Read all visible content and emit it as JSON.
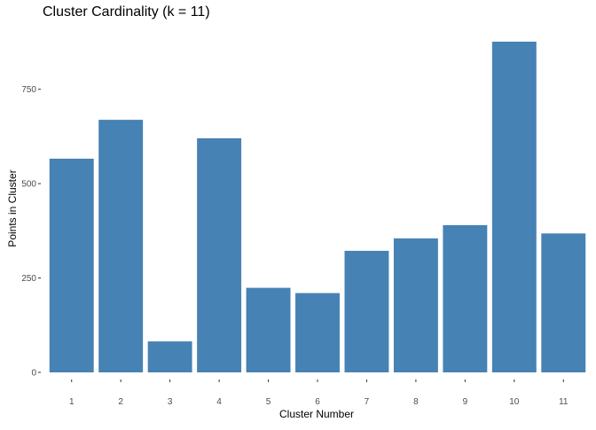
{
  "chart_data": {
    "type": "bar",
    "title": "Cluster Cardinality (k = 11)",
    "xlabel": "Cluster Number",
    "ylabel": "Points in Cluster",
    "categories": [
      "1",
      "2",
      "3",
      "4",
      "5",
      "6",
      "7",
      "8",
      "9",
      "10",
      "11"
    ],
    "values": [
      566,
      669,
      82,
      620,
      224,
      210,
      322,
      355,
      390,
      876,
      368
    ],
    "ylim": [
      0,
      890
    ],
    "yticks": [
      0,
      250,
      500,
      750
    ],
    "ytick_labels": [
      "0",
      "250",
      "500",
      "750"
    ],
    "bar_color": "#4682B4",
    "grid": false,
    "legend": "none"
  }
}
